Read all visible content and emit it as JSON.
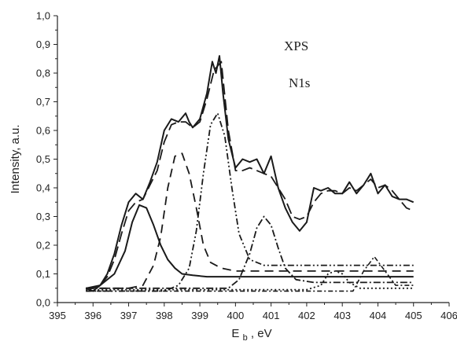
{
  "chart_data": {
    "type": "line",
    "title": "",
    "annotations": [
      "XPS",
      "N1s"
    ],
    "xlabel": {
      "main": "E",
      "sub": "b",
      "rest": ", eV"
    },
    "ylabel": "Intensity, a.u.",
    "xlim": [
      395,
      406
    ],
    "ylim": [
      0,
      1.0
    ],
    "x_ticks": [
      "395",
      "396",
      "397",
      "398",
      "399",
      "400",
      "401",
      "402",
      "403",
      "404",
      "405",
      "406"
    ],
    "y_ticks": [
      "0,0",
      "0,1",
      "0,2",
      "0,3",
      "0,4",
      "0,5",
      "0,6",
      "0,7",
      "0,8",
      "0,9",
      "1,0"
    ],
    "grid": false,
    "legend": "none",
    "series": [
      {
        "style": "solid",
        "x": [
          395.8,
          396.0,
          396.2,
          396.4,
          396.6,
          396.8,
          397.0,
          397.2,
          397.4,
          397.6,
          397.8,
          398.0,
          398.2,
          398.4,
          398.6,
          398.7,
          398.8,
          399.0,
          399.2,
          399.35,
          399.45,
          399.55,
          399.65,
          399.8,
          400.0,
          400.2,
          400.4,
          400.6,
          400.8,
          401.0,
          401.2,
          401.4,
          401.6,
          401.8,
          402.0,
          402.2,
          402.4,
          402.6,
          402.8,
          403.0,
          403.2,
          403.4,
          403.6,
          403.8,
          404.0,
          404.2,
          404.4,
          404.6,
          404.8,
          405.0
        ],
        "y": [
          0.05,
          0.04,
          0.06,
          0.1,
          0.17,
          0.27,
          0.35,
          0.38,
          0.36,
          0.42,
          0.49,
          0.6,
          0.64,
          0.63,
          0.66,
          0.63,
          0.61,
          0.64,
          0.73,
          0.84,
          0.8,
          0.86,
          0.73,
          0.57,
          0.47,
          0.5,
          0.49,
          0.5,
          0.45,
          0.51,
          0.4,
          0.33,
          0.28,
          0.25,
          0.28,
          0.4,
          0.39,
          0.4,
          0.38,
          0.38,
          0.42,
          0.38,
          0.41,
          0.45,
          0.38,
          0.41,
          0.37,
          0.36,
          0.36,
          0.35
        ]
      },
      {
        "style": "dash",
        "x": [
          395.8,
          396.0,
          396.2,
          396.4,
          396.6,
          396.8,
          397.0,
          397.2,
          397.4,
          397.6,
          397.8,
          398.0,
          398.2,
          398.4,
          398.6,
          398.8,
          399.0,
          399.2,
          399.4,
          399.6,
          399.8,
          400.0,
          400.2,
          400.4,
          400.6,
          400.8,
          401.0,
          401.2,
          401.4,
          401.6,
          401.8,
          402.0,
          402.2,
          402.4,
          402.6,
          402.8,
          403.0,
          403.2,
          403.4,
          403.6,
          403.8,
          404.0,
          404.2,
          404.4,
          404.6,
          404.8,
          405.0
        ],
        "y": [
          0.05,
          0.05,
          0.06,
          0.09,
          0.15,
          0.24,
          0.32,
          0.35,
          0.36,
          0.41,
          0.46,
          0.56,
          0.62,
          0.63,
          0.63,
          0.61,
          0.63,
          0.71,
          0.81,
          0.84,
          0.6,
          0.46,
          0.46,
          0.47,
          0.46,
          0.45,
          0.44,
          0.4,
          0.36,
          0.3,
          0.29,
          0.3,
          0.35,
          0.38,
          0.39,
          0.39,
          0.38,
          0.4,
          0.39,
          0.41,
          0.43,
          0.4,
          0.41,
          0.39,
          0.36,
          0.33,
          0.32
        ]
      },
      {
        "style": "solid",
        "x": [
          395.8,
          396.2,
          396.6,
          396.9,
          397.1,
          397.3,
          397.5,
          397.7,
          397.9,
          398.1,
          398.3,
          398.5,
          398.8,
          399.2,
          400.0,
          402.0,
          405.0
        ],
        "y": [
          0.05,
          0.06,
          0.1,
          0.18,
          0.28,
          0.34,
          0.33,
          0.27,
          0.2,
          0.15,
          0.12,
          0.1,
          0.095,
          0.09,
          0.09,
          0.09,
          0.09
        ]
      },
      {
        "style": "dash-long",
        "x": [
          395.8,
          397.0,
          397.4,
          397.7,
          397.9,
          398.1,
          398.3,
          398.5,
          398.7,
          398.9,
          399.1,
          399.3,
          399.6,
          400.0,
          402.0,
          405.0
        ],
        "y": [
          0.05,
          0.05,
          0.06,
          0.13,
          0.23,
          0.4,
          0.51,
          0.52,
          0.45,
          0.33,
          0.2,
          0.14,
          0.12,
          0.11,
          0.11,
          0.11
        ]
      },
      {
        "style": "dash-dot-dot",
        "x": [
          395.8,
          398.0,
          398.4,
          398.7,
          398.9,
          399.1,
          399.3,
          399.5,
          399.7,
          399.9,
          400.1,
          400.4,
          400.8,
          401.5,
          405.0
        ],
        "y": [
          0.04,
          0.04,
          0.06,
          0.12,
          0.25,
          0.45,
          0.62,
          0.66,
          0.58,
          0.4,
          0.24,
          0.15,
          0.13,
          0.13,
          0.13
        ]
      },
      {
        "style": "dash-dot",
        "x": [
          395.8,
          399.8,
          400.1,
          400.4,
          400.6,
          400.8,
          401.0,
          401.2,
          401.4,
          401.7,
          402.2,
          405.0
        ],
        "y": [
          0.05,
          0.05,
          0.08,
          0.17,
          0.26,
          0.3,
          0.27,
          0.19,
          0.12,
          0.08,
          0.07,
          0.07
        ]
      },
      {
        "style": "dot",
        "x": [
          395.8,
          402.0,
          402.4,
          402.6,
          402.8,
          403.0,
          403.2,
          403.5,
          405.0
        ],
        "y": [
          0.045,
          0.045,
          0.06,
          0.1,
          0.11,
          0.1,
          0.07,
          0.05,
          0.05
        ]
      },
      {
        "style": "dash-dot-fine",
        "x": [
          395.8,
          403.3,
          403.6,
          403.9,
          404.2,
          404.5,
          405.0
        ],
        "y": [
          0.04,
          0.04,
          0.11,
          0.16,
          0.11,
          0.06,
          0.06
        ]
      }
    ]
  }
}
